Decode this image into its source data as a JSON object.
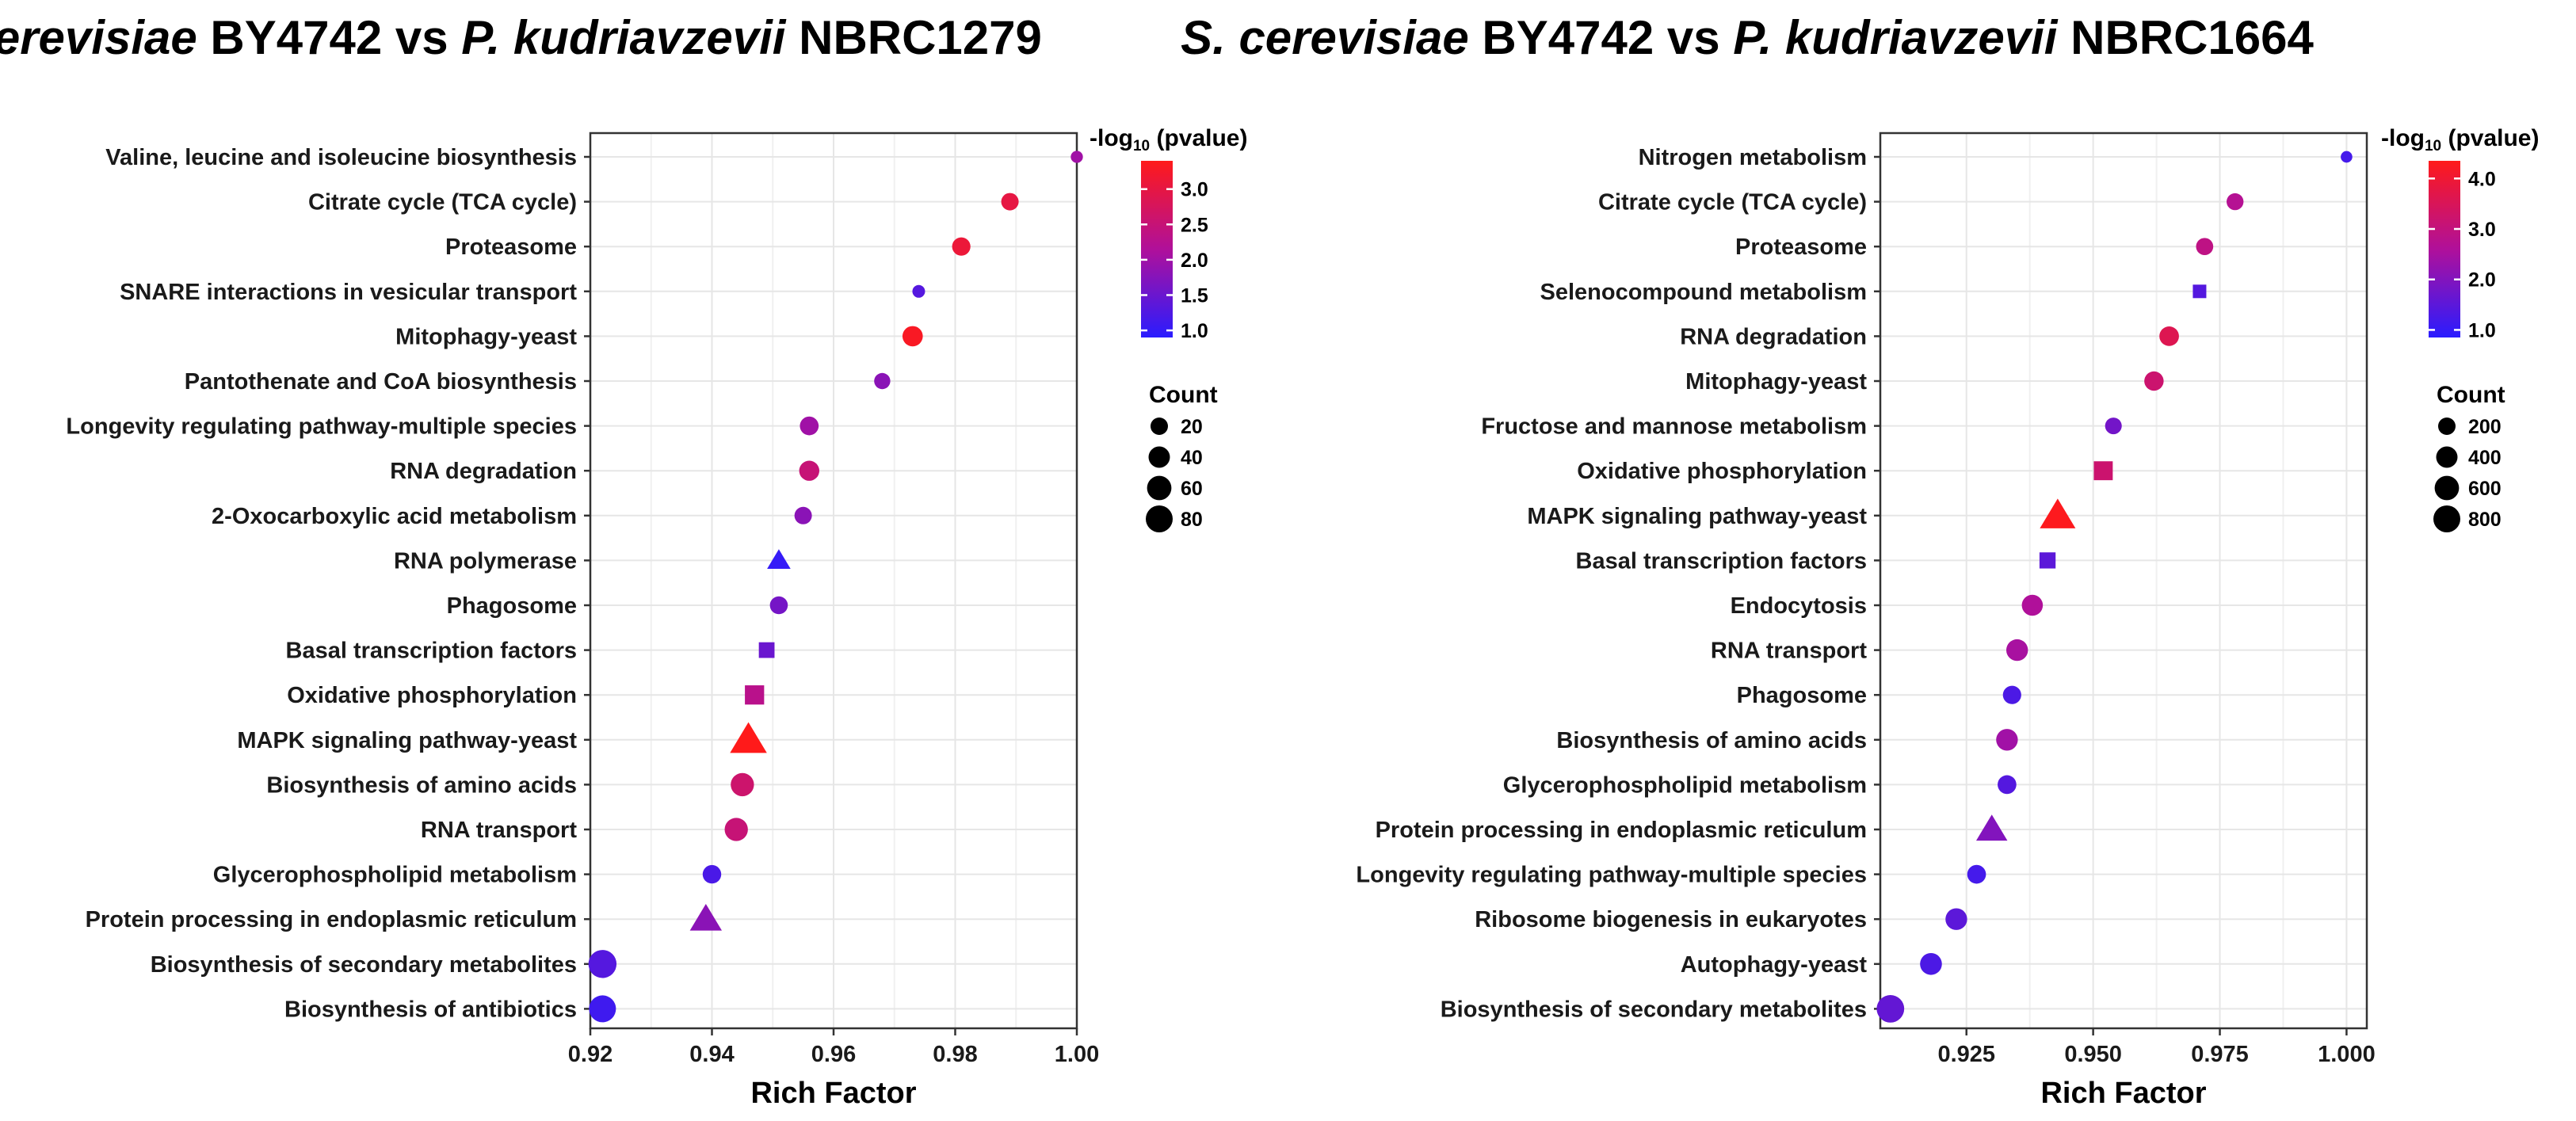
{
  "chart_data": [
    {
      "type": "scatter",
      "title": {
        "part1": "S. cerevisiae",
        "part2": " BY4742 vs ",
        "part3": "P. kudriavzevii",
        "part4": " NBRC1279"
      },
      "xlabel": "Rich Factor",
      "xlim": [
        0.92,
        1.0
      ],
      "xticks": [
        "0.92",
        "0.94",
        "0.96",
        "0.98",
        "1.00"
      ],
      "xtick_values": [
        0.92,
        0.94,
        0.96,
        0.98,
        1.0
      ],
      "color_legend": {
        "title": "-log",
        "title_sub": "10",
        "title_rest": " (pvalue)",
        "min": 0.9,
        "max": 3.4,
        "ticks": [
          "1.0",
          "1.5",
          "2.0",
          "2.5",
          "3.0"
        ],
        "tick_values": [
          1.0,
          1.5,
          2.0,
          2.5,
          3.0
        ]
      },
      "size_legend": {
        "title": "Count",
        "labels": [
          "20",
          "40",
          "60",
          "80"
        ],
        "values": [
          20,
          40,
          60,
          80
        ]
      },
      "colors": {
        "low": "#2a1cff",
        "mid": "#b0109a",
        "high": "#ff1a1a"
      },
      "points": [
        {
          "pathway": "Valine, leucine and isoleucine biosynthesis",
          "rich_factor": 1.0,
          "neg_log10_p": 2.0,
          "count": 4,
          "shape": "circle"
        },
        {
          "pathway": "Citrate cycle (TCA cycle)",
          "rich_factor": 0.989,
          "neg_log10_p": 3.0,
          "count": 20,
          "shape": "circle"
        },
        {
          "pathway": "Proteasome",
          "rich_factor": 0.981,
          "neg_log10_p": 3.1,
          "count": 24,
          "shape": "circle"
        },
        {
          "pathway": "SNARE interactions in vesicular transport",
          "rich_factor": 0.974,
          "neg_log10_p": 1.3,
          "count": 5,
          "shape": "circle"
        },
        {
          "pathway": "Mitophagy-yeast",
          "rich_factor": 0.973,
          "neg_log10_p": 3.3,
          "count": 34,
          "shape": "circle"
        },
        {
          "pathway": "Pantothenate and CoA biosynthesis",
          "rich_factor": 0.968,
          "neg_log10_p": 1.8,
          "count": 15,
          "shape": "circle"
        },
        {
          "pathway": "Longevity regulating pathway-multiple species",
          "rich_factor": 0.956,
          "neg_log10_p": 2.0,
          "count": 26,
          "shape": "circle"
        },
        {
          "pathway": "RNA degradation",
          "rich_factor": 0.956,
          "neg_log10_p": 2.5,
          "count": 33,
          "shape": "circle"
        },
        {
          "pathway": "2-Oxocarboxylic acid metabolism",
          "rich_factor": 0.955,
          "neg_log10_p": 1.8,
          "count": 20,
          "shape": "circle"
        },
        {
          "pathway": "RNA polymerase",
          "rich_factor": 0.951,
          "neg_log10_p": 1.0,
          "count": 22,
          "shape": "triangle"
        },
        {
          "pathway": "Phagosome",
          "rich_factor": 0.951,
          "neg_log10_p": 1.6,
          "count": 22,
          "shape": "circle"
        },
        {
          "pathway": "Basal transcription factors",
          "rich_factor": 0.949,
          "neg_log10_p": 1.5,
          "count": 20,
          "shape": "square"
        },
        {
          "pathway": "Oxidative phosphorylation",
          "rich_factor": 0.947,
          "neg_log10_p": 2.3,
          "count": 40,
          "shape": "square"
        },
        {
          "pathway": "MAPK signaling pathway-yeast",
          "rich_factor": 0.946,
          "neg_log10_p": 3.4,
          "count": 90,
          "shape": "triangle"
        },
        {
          "pathway": "Biosynthesis of amino acids",
          "rich_factor": 0.945,
          "neg_log10_p": 2.6,
          "count": 52,
          "shape": "circle"
        },
        {
          "pathway": "RNA transport",
          "rich_factor": 0.944,
          "neg_log10_p": 2.5,
          "count": 52,
          "shape": "circle"
        },
        {
          "pathway": "Glycerophospholipid metabolism",
          "rich_factor": 0.94,
          "neg_log10_p": 1.2,
          "count": 25,
          "shape": "circle"
        },
        {
          "pathway": "Protein processing in endoplasmic reticulum",
          "rich_factor": 0.939,
          "neg_log10_p": 1.8,
          "count": 60,
          "shape": "triangle"
        },
        {
          "pathway": "Biosynthesis of secondary metabolites",
          "rich_factor": 0.922,
          "neg_log10_p": 1.3,
          "count": 90,
          "shape": "circle"
        },
        {
          "pathway": "Biosynthesis of antibiotics",
          "rich_factor": 0.922,
          "neg_log10_p": 1.1,
          "count": 80,
          "shape": "circle"
        }
      ]
    },
    {
      "type": "scatter",
      "title": {
        "part1": "S. cerevisiae",
        "part2": " BY4742 vs ",
        "part3": "P. kudriavzevii",
        "part4": " NBRC1664"
      },
      "xlabel": "Rich Factor",
      "xlim": [
        0.908,
        1.004
      ],
      "xticks": [
        "0.925",
        "0.950",
        "0.975",
        "1.000"
      ],
      "xtick_values": [
        0.925,
        0.95,
        0.975,
        1.0
      ],
      "color_legend": {
        "title": "-log",
        "title_sub": "10",
        "title_rest": " (pvalue)",
        "min": 0.85,
        "max": 4.35,
        "ticks": [
          "1.0",
          "2.0",
          "3.0",
          "4.0"
        ],
        "tick_values": [
          1.0,
          2.0,
          3.0,
          4.0
        ]
      },
      "size_legend": {
        "title": "Count",
        "labels": [
          "200",
          "400",
          "600",
          "800"
        ],
        "values": [
          200,
          400,
          600,
          800
        ]
      },
      "colors": {
        "low": "#2a1cff",
        "mid": "#b0109a",
        "high": "#ff1a1a"
      },
      "points": [
        {
          "pathway": "Nitrogen metabolism",
          "rich_factor": 1.0,
          "neg_log10_p": 1.2,
          "count": 30,
          "shape": "circle"
        },
        {
          "pathway": "Citrate cycle (TCA cycle)",
          "rich_factor": 0.978,
          "neg_log10_p": 2.7,
          "count": 180,
          "shape": "circle"
        },
        {
          "pathway": "Proteasome",
          "rich_factor": 0.972,
          "neg_log10_p": 2.9,
          "count": 190,
          "shape": "circle"
        },
        {
          "pathway": "Selenocompound metabolism",
          "rich_factor": 0.971,
          "neg_log10_p": 1.4,
          "count": 110,
          "shape": "square"
        },
        {
          "pathway": "RNA degradation",
          "rich_factor": 0.965,
          "neg_log10_p": 3.6,
          "count": 300,
          "shape": "circle"
        },
        {
          "pathway": "Mitophagy-yeast",
          "rich_factor": 0.962,
          "neg_log10_p": 3.2,
          "count": 290,
          "shape": "circle"
        },
        {
          "pathway": "Fructose and mannose metabolism",
          "rich_factor": 0.954,
          "neg_log10_p": 1.8,
          "count": 170,
          "shape": "circle"
        },
        {
          "pathway": "Oxidative phosphorylation",
          "rich_factor": 0.952,
          "neg_log10_p": 3.2,
          "count": 380,
          "shape": "square"
        },
        {
          "pathway": "MAPK signaling pathway-yeast",
          "rich_factor": 0.943,
          "neg_log10_p": 4.3,
          "count": 820,
          "shape": "triangle"
        },
        {
          "pathway": "Basal transcription factors",
          "rich_factor": 0.941,
          "neg_log10_p": 1.5,
          "count": 220,
          "shape": "square"
        },
        {
          "pathway": "Endocytosis",
          "rich_factor": 0.938,
          "neg_log10_p": 2.6,
          "count": 380,
          "shape": "circle"
        },
        {
          "pathway": "RNA transport",
          "rich_factor": 0.935,
          "neg_log10_p": 2.5,
          "count": 420,
          "shape": "circle"
        },
        {
          "pathway": "Phagosome",
          "rich_factor": 0.934,
          "neg_log10_p": 1.3,
          "count": 240,
          "shape": "circle"
        },
        {
          "pathway": "Biosynthesis of amino acids",
          "rich_factor": 0.933,
          "neg_log10_p": 2.4,
          "count": 420,
          "shape": "circle"
        },
        {
          "pathway": "Glycerophospholipid metabolism",
          "rich_factor": 0.933,
          "neg_log10_p": 1.4,
          "count": 260,
          "shape": "circle"
        },
        {
          "pathway": "Protein processing in endoplasmic reticulum",
          "rich_factor": 0.93,
          "neg_log10_p": 2.0,
          "count": 560,
          "shape": "triangle"
        },
        {
          "pathway": "Longevity regulating pathway-multiple species",
          "rich_factor": 0.927,
          "neg_log10_p": 1.2,
          "count": 260,
          "shape": "circle"
        },
        {
          "pathway": "Ribosome biogenesis in eukaryotes",
          "rich_factor": 0.923,
          "neg_log10_p": 1.5,
          "count": 420,
          "shape": "circle"
        },
        {
          "pathway": "Autophagy-yeast",
          "rich_factor": 0.918,
          "neg_log10_p": 1.3,
          "count": 430,
          "shape": "circle"
        },
        {
          "pathway": "Biosynthesis of secondary metabolites",
          "rich_factor": 0.91,
          "neg_log10_p": 1.6,
          "count": 850,
          "shape": "circle"
        }
      ]
    }
  ]
}
